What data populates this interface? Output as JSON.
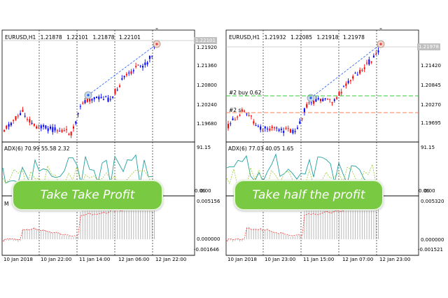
{
  "left": {
    "symbol": "EURUSD,H1",
    "ohlc": [
      "1.21878",
      "1.22101",
      "1.21878",
      "1.22101"
    ],
    "price_tag": "1.22101",
    "price_labels": [
      "1.21920",
      "1.21360",
      "1.20800",
      "1.20240",
      "1.19680"
    ],
    "indicator_header": "ADX(6) 70.99 55.58 2.32",
    "indicator_top": "91.15",
    "indicator_bottom": "0.06",
    "indicator_bottom2": "0.00",
    "macd_label": "M",
    "macd_top": "0.005156",
    "macd_zero": "0.000000",
    "macd_bottom": "-0.001646",
    "x_labels": [
      "10 Jan 2018",
      "10 Jan 22:00",
      "11 Jan 14:00",
      "12 Jan 06:00",
      "12 Jan 22:00"
    ],
    "banner": "Take Take Profit"
  },
  "right": {
    "symbol": "EURUSD,H1",
    "ohlc": [
      "1.21932",
      "1.22085",
      "1.21918",
      "1.21978"
    ],
    "price_tag": "1.21978",
    "price_labels": [
      "1.21420",
      "1.20845",
      "1.20270",
      "1.19695"
    ],
    "order_labels": [
      "#2 buy 0.62",
      "#2 s"
    ],
    "indicator_header": "ADX(6) 77.03 40.05 1.65",
    "indicator_top": "91.15",
    "indicator_bottom": "0.06",
    "indicator_bottom2": "0.00",
    "macd_top": "0.005320",
    "macd_zero": "0.000000",
    "macd_bottom": "-0.001521",
    "x_labels": [
      "10 Jan 2018",
      "10 Jan 23:00",
      "11 Jan 15:00",
      "12 Jan 07:00",
      "12 Jan 23:00"
    ],
    "banner": "Take half the profit"
  },
  "colors": {
    "bull": "#0000ff",
    "bear": "#ff0000",
    "adx": "#20a0a0",
    "di_plus": "#9acd32",
    "trend_line": "#1e5aff",
    "take_profit_line": "#ff7f50",
    "buy_line": "#32cd32",
    "banner": "#7ac943"
  }
}
